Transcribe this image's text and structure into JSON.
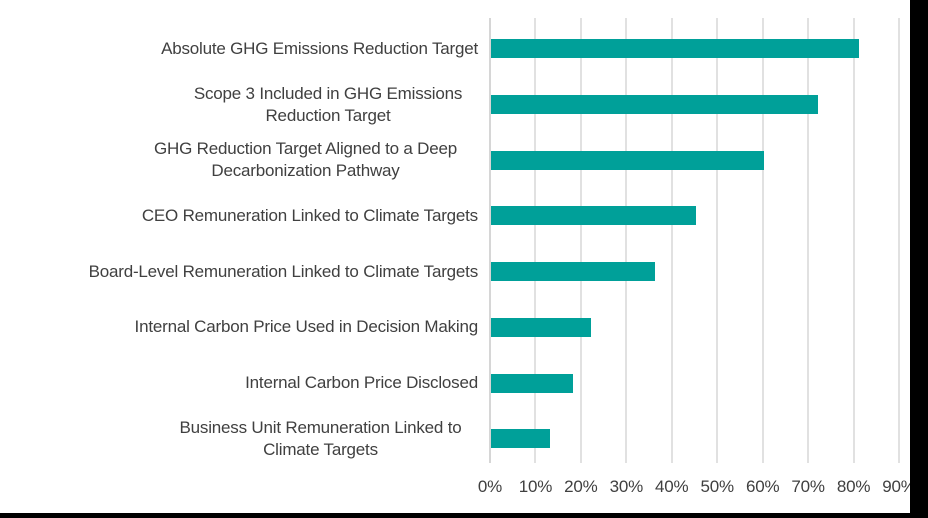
{
  "chart_data": {
    "type": "bar",
    "orientation": "horizontal",
    "title": "",
    "categories": [
      "Absolute GHG Emissions Reduction Target",
      "Scope 3 Included in GHG Emissions Reduction Target",
      "GHG Reduction Target Aligned to a Deep Decarbonization Pathway",
      "CEO Remuneration Linked to Climate Targets",
      "Board-Level Remuneration Linked to Climate Targets",
      "Internal Carbon Price Used in Decision Making",
      "Internal Carbon Price Disclosed",
      "Business Unit Remuneration Linked to Climate Targets"
    ],
    "values": [
      81,
      72,
      60,
      45,
      36,
      22,
      18,
      13
    ],
    "value_unit": "%",
    "x_tick_labels": [
      "0%",
      "10%",
      "20%",
      "30%",
      "40%",
      "50%",
      "60%",
      "70%",
      "80%",
      "90%"
    ],
    "xlim": [
      0,
      90
    ],
    "xlabel": "",
    "ylabel": "",
    "legend": "none",
    "grid": "vertical",
    "colors": {
      "bar": "#00A099",
      "gridline": "#E1E1E1",
      "axis_line": "#D6D6D6",
      "text": "#404040",
      "background": "#FFFFFF",
      "crop_border": "#000000"
    }
  }
}
